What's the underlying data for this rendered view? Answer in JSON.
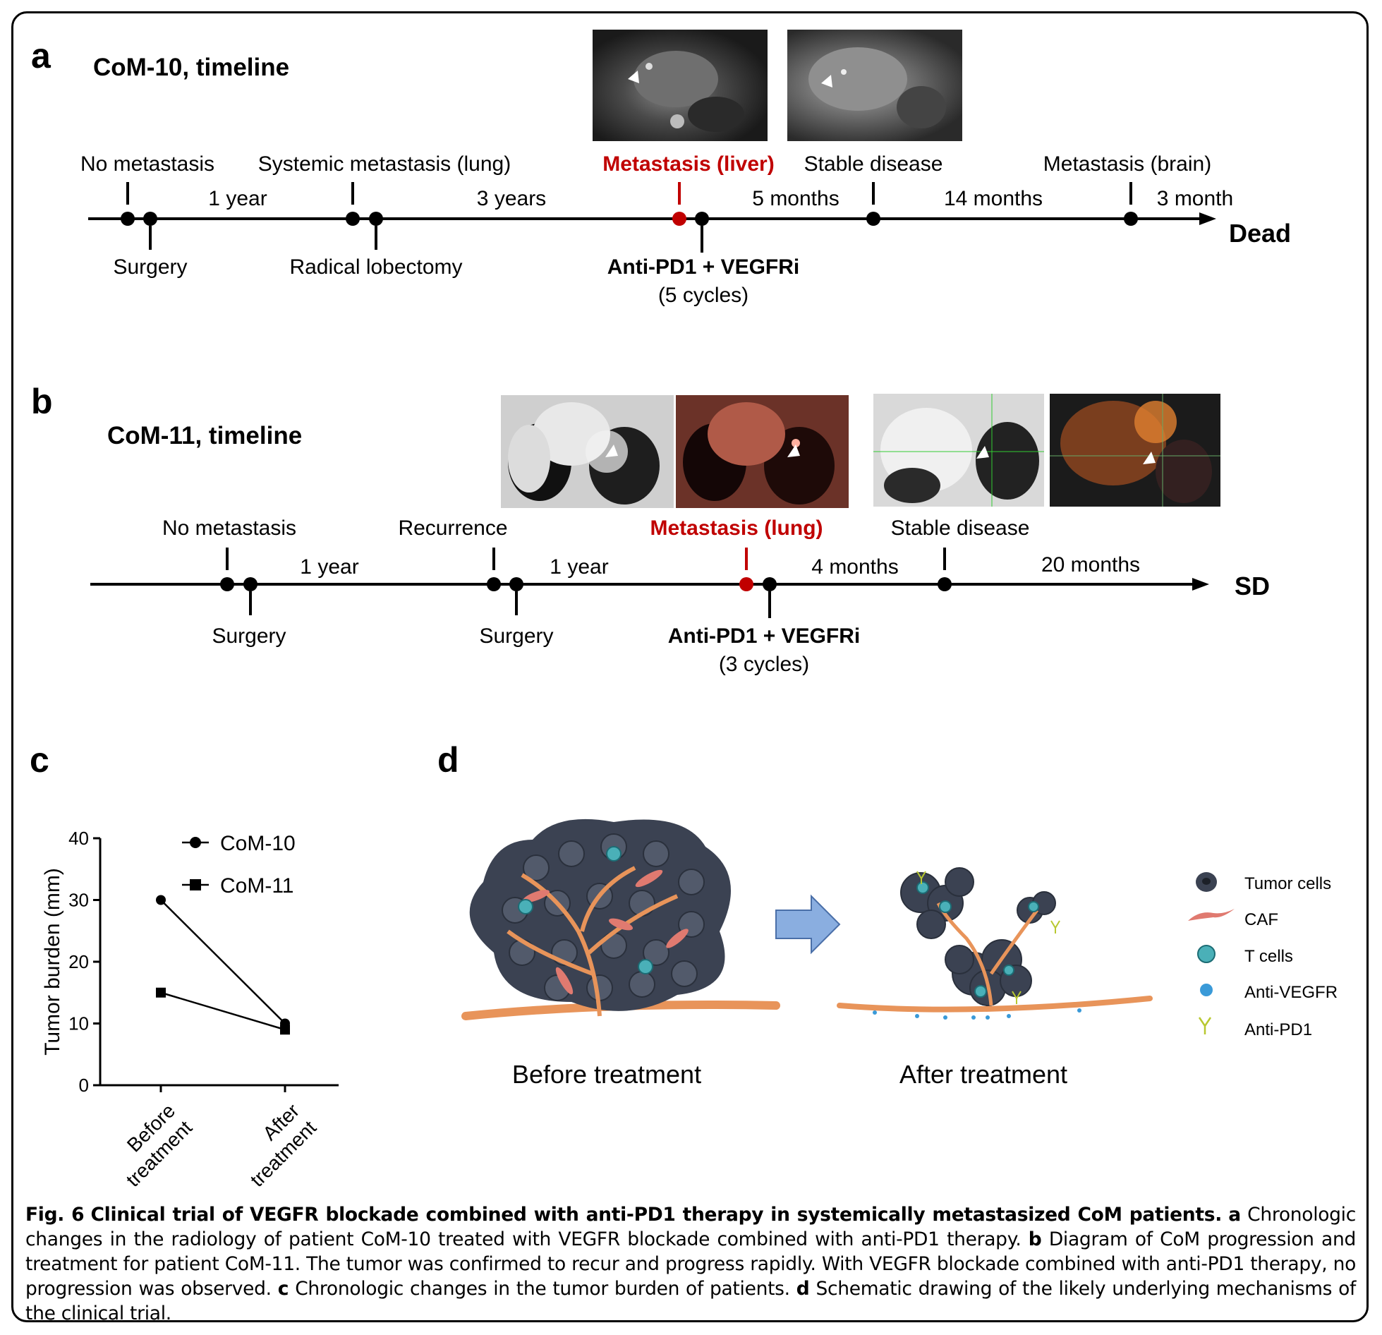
{
  "panel_a": {
    "letter": "a",
    "title": "CoM-10, timeline",
    "above_labels": [
      "No metastasis",
      "Systemic metastasis (lung)",
      "Metastasis (liver)",
      "Stable disease",
      "Metastasis (brain)"
    ],
    "intervals": [
      "1 year",
      "3 years",
      "5 months",
      "14 months",
      "3 month"
    ],
    "below_labels": [
      "Surgery",
      "Radical lobectomy"
    ],
    "treatment": "Anti-PD1 + VEGFRi",
    "treatment_cycles": "(5 cycles)",
    "end_label": "Dead"
  },
  "panel_b": {
    "letter": "b",
    "title": "CoM-11, timeline",
    "above_labels": [
      "No metastasis",
      "Recurrence",
      "Metastasis (lung)",
      "Stable disease"
    ],
    "intervals": [
      "1 year",
      "1 year",
      "4 months",
      "20 months"
    ],
    "below_labels": [
      "Surgery",
      "Surgery"
    ],
    "treatment": "Anti-PD1 + VEGFRi",
    "treatment_cycles": "(3 cycles)",
    "end_label": "SD"
  },
  "panel_c": {
    "letter": "c"
  },
  "panel_d": {
    "letter": "d",
    "before_label": "Before treatment",
    "after_label": "After treatment",
    "legend": [
      "Tumor cells",
      "CAF",
      "T cells",
      "Anti-VEGFR",
      "Anti-PD1"
    ]
  },
  "chart_data": {
    "type": "line",
    "categories": [
      "Before treatment",
      "After treatment"
    ],
    "ylabel": "Tumor burden (mm)",
    "ylim": [
      0,
      40
    ],
    "yticks": [
      0,
      10,
      20,
      30,
      40
    ],
    "legend_placement": "top-right",
    "series": [
      {
        "name": "CoM-10",
        "marker": "circle",
        "values": [
          30,
          10
        ]
      },
      {
        "name": "CoM-11",
        "marker": "square",
        "values": [
          15,
          9
        ]
      }
    ]
  },
  "caption": {
    "fig": "Fig. 6",
    "title": "Clinical trial of VEGFR blockade combined with anti-PD1 therapy in systemically metastasized CoM patients.",
    "a_letter": "a",
    "a_text": "Chronologic changes in the radiology of patient CoM-10 treated with VEGFR blockade combined with anti-PD1 therapy.",
    "b_letter": "b",
    "b_text": "Diagram of CoM progression and treatment for patient CoM-11. The tumor was confirmed to recur and progress rapidly. With VEGFR blockade combined with anti-PD1 therapy, no progression was observed.",
    "c_letter": "c",
    "c_text": "Chronologic changes in the tumor burden of patients.",
    "d_letter": "d",
    "d_text": "Schematic drawing of the likely underlying mechanisms of the clinical trial."
  },
  "colors": {
    "highlight": "#c00000",
    "arrow_fill": "#8aaee0",
    "vessel": "#e8945a",
    "tumor": "#3b4252"
  }
}
